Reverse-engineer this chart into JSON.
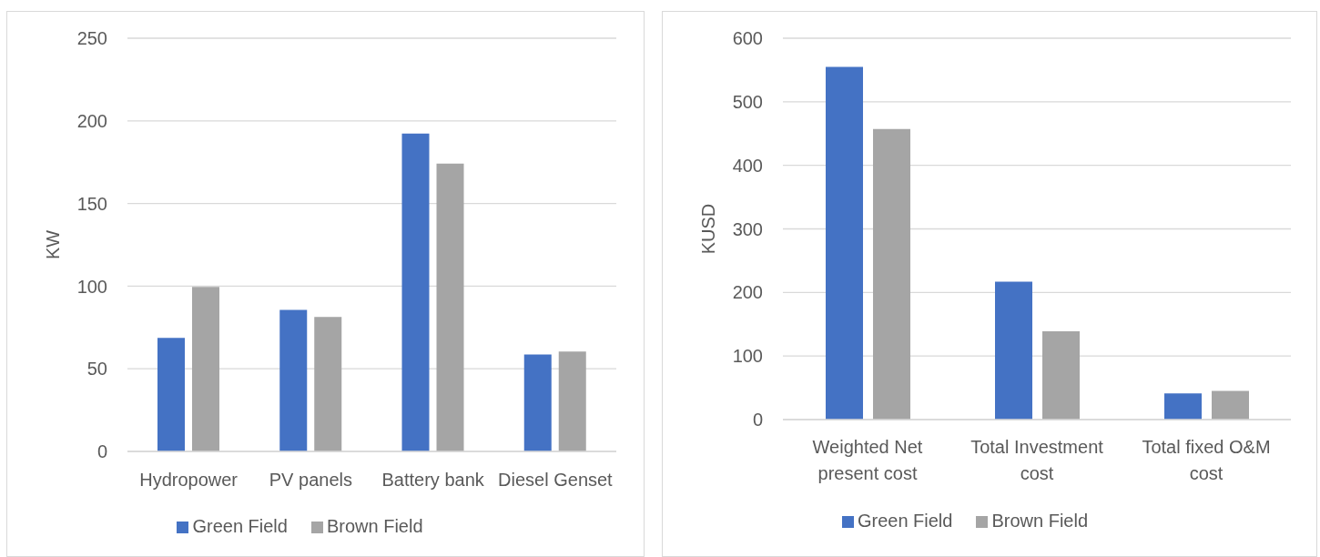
{
  "chart_data": [
    {
      "type": "bar",
      "ylabel": "KW",
      "categories": [
        "Hydropower",
        "PV panels",
        "Battery bank",
        "Diesel Genset"
      ],
      "series": [
        {
          "name": "Green Field",
          "color": "#4472c4",
          "values": [
            68.7,
            85.6,
            192.3,
            58.7
          ]
        },
        {
          "name": "Brown Field",
          "color": "#a5a5a5",
          "values": [
            99.5,
            81.3,
            174.2,
            60.4
          ]
        }
      ],
      "ylim": [
        0,
        250
      ],
      "yticks": [
        0,
        50,
        100,
        150,
        200,
        250
      ],
      "grid": "y",
      "legend": "bottom"
    },
    {
      "type": "bar",
      "ylabel": "KUSD",
      "categories": [
        "Weighted Net present cost",
        "Total Investment cost",
        "Total fixed O&M cost"
      ],
      "series": [
        {
          "name": "Green Field",
          "color": "#4472c4",
          "values": [
            555,
            217,
            41
          ]
        },
        {
          "name": "Brown Field",
          "color": "#a5a5a5",
          "values": [
            457,
            139,
            45
          ]
        }
      ],
      "ylim": [
        0,
        600
      ],
      "yticks": [
        0,
        100,
        200,
        300,
        400,
        500,
        600
      ],
      "grid": "y",
      "legend": "bottom"
    }
  ]
}
